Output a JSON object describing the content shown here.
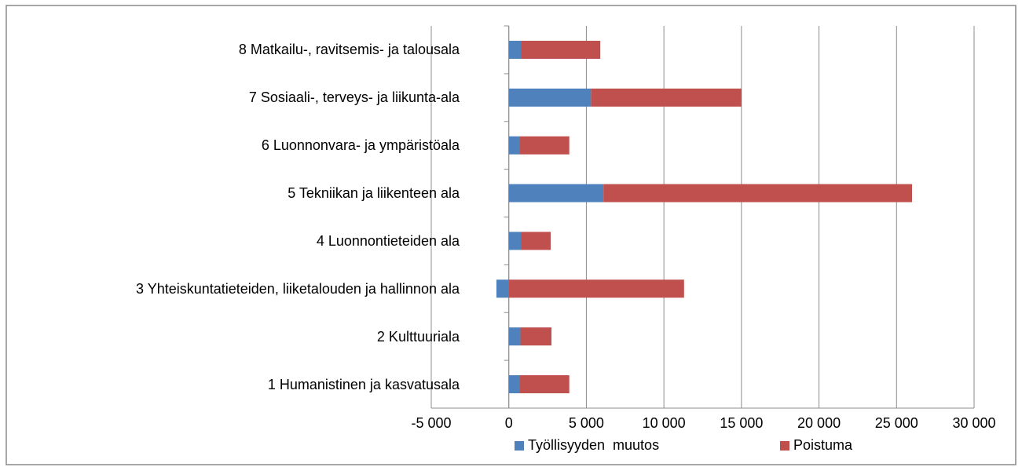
{
  "chart_data": {
    "type": "stacked_barh",
    "categories": [
      "1 Humanistinen ja kasvatusala",
      "2 Kulttuuriala",
      "3 Yhteiskuntatieteiden, liiketalouden ja hallinnon ala",
      "4 Luonnontieteiden ala",
      "5 Tekniikan ja liikenteen ala",
      "6 Luonnonvara- ja ympäristöala",
      "7 Sosiaali-, terveys- ja liikunta-ala",
      "8 Matkailu-, ravitsemis- ja talousala"
    ],
    "series": [
      {
        "name": "Työllisyyden  muutos",
        "color": "#4f81bd",
        "values": [
          700,
          750,
          -800,
          800,
          6100,
          700,
          5300,
          800
        ]
      },
      {
        "name": "Poistuma",
        "color": "#c0504d",
        "values": [
          3200,
          2000,
          11300,
          1900,
          19900,
          3200,
          9700,
          5100
        ]
      }
    ],
    "xlim": [
      -5000,
      30000
    ],
    "xticks": [
      {
        "value": -5000,
        "label": "-5 000"
      },
      0,
      {
        "value": 5000,
        "label": "5 000"
      },
      {
        "value": 10000,
        "label": "10 000"
      },
      {
        "value": 15000,
        "label": "15 000"
      },
      {
        "value": 20000,
        "label": "20 000"
      },
      {
        "value": 25000,
        "label": "25 000"
      },
      {
        "value": 30000,
        "label": "30 000"
      }
    ],
    "grid": true,
    "legend": "bottom"
  }
}
